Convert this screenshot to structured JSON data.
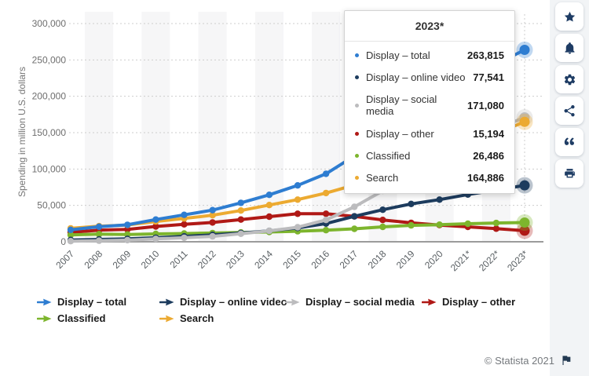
{
  "tooltip": {
    "title": "2023*",
    "rows": [
      {
        "label": "Display – total",
        "value": "263,815",
        "color": "#2e7dd1"
      },
      {
        "label": "Display – online video",
        "value": "77,541",
        "color": "#1d3c5e"
      },
      {
        "label": "Display – social media",
        "value": "171,080",
        "color": "#bcbcbe"
      },
      {
        "label": "Display – other",
        "value": "15,194",
        "color": "#b01916"
      },
      {
        "label": "Classified",
        "value": "26,486",
        "color": "#7db52d"
      },
      {
        "label": "Search",
        "value": "164,886",
        "color": "#ecaa31"
      }
    ]
  },
  "chart_data": {
    "type": "line",
    "title": "",
    "xlabel": "",
    "ylabel": "Spending in million U.S. dollars",
    "ylim": [
      0,
      300000
    ],
    "ytick_step": 50000,
    "grid": "horizontal-dotted",
    "legend_position": "bottom",
    "highlight_category": "2023*",
    "categories": [
      "2007",
      "2008",
      "2009",
      "2010",
      "2011",
      "2012",
      "2013",
      "2014",
      "2015",
      "2016",
      "2017",
      "2018",
      "2019",
      "2020",
      "2021*",
      "2022*",
      "2023*"
    ],
    "series": [
      {
        "name": "Display – total",
        "color": "#2e7dd1",
        "values": [
          16400,
          20700,
          23300,
          30500,
          37000,
          43500,
          53500,
          64500,
          77500,
          93500,
          118000,
          144000,
          172000,
          199000,
          223500,
          244000,
          263815
        ]
      },
      {
        "name": "Display – online video",
        "color": "#1d3c5e",
        "values": [
          2500,
          3200,
          4000,
          5500,
          7500,
          9500,
          12000,
          15000,
          19000,
          25000,
          35000,
          44000,
          52000,
          58000,
          65000,
          71000,
          77541
        ]
      },
      {
        "name": "Display – social media",
        "color": "#bcbcbe",
        "values": [
          900,
          1500,
          2300,
          4000,
          5500,
          7500,
          11000,
          15000,
          20000,
          30000,
          48000,
          70000,
          94000,
          118000,
          138000,
          155000,
          171080
        ]
      },
      {
        "name": "Display – other",
        "color": "#b01916",
        "values": [
          13000,
          16000,
          17000,
          21000,
          24000,
          26500,
          30500,
          34500,
          38500,
          38500,
          35000,
          30000,
          26000,
          23000,
          20500,
          18000,
          15194
        ]
      },
      {
        "name": "Classified",
        "color": "#7db52d",
        "values": [
          9500,
          10500,
          10000,
          10800,
          11300,
          12000,
          12800,
          13500,
          14500,
          16000,
          17800,
          20500,
          22500,
          23500,
          24800,
          25800,
          26486
        ]
      },
      {
        "name": "Search",
        "color": "#ecaa31",
        "values": [
          18500,
          21500,
          23000,
          28000,
          32000,
          36500,
          43000,
          50500,
          58000,
          67000,
          78000,
          90000,
          103000,
          118000,
          133000,
          149000,
          164886
        ]
      }
    ],
    "draw_order": [
      "Display – other",
      "Classified",
      "Display – online video",
      "Display – social media",
      "Search",
      "Display – total"
    ]
  },
  "sidebar": {
    "icons": [
      "star-icon",
      "bell-icon",
      "gear-icon",
      "share-icon",
      "quote-icon",
      "print-icon"
    ]
  },
  "footer": {
    "copyright": "© Statista 2021",
    "flag_icon": "flag-icon"
  }
}
